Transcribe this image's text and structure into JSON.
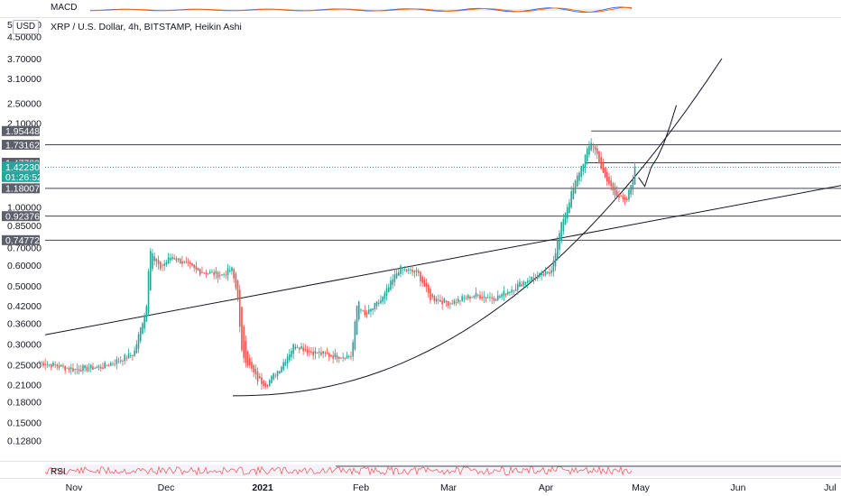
{
  "currency": "USD",
  "title": "XRP / U.S. Dollar, 4h, BITSTAMP, Heikin Ashi",
  "panes": {
    "macd_label": "MACD",
    "rsi_label": "RSI"
  },
  "colors": {
    "up": "#26a69a",
    "down": "#ef5350",
    "trend": "#131722",
    "hline": "#434651",
    "badge": "#5d606b",
    "current_price": "#26a69a",
    "last_red": "#ef5350",
    "macd": "#2962ff",
    "signal": "#ff6d00",
    "rsi": "#ef5350",
    "rsi_band": "#7e57c2"
  },
  "chart_data": {
    "type": "candlestick",
    "symbol": "XRP / U.S. Dollar",
    "interval": "4h",
    "exchange": "BITSTAMP",
    "style": "Heikin Ashi",
    "y_scale": "log",
    "ylim": [
      0.108,
      5.0
    ],
    "y_ticks": [
      "5.00000",
      "4.50000",
      "3.70000",
      "3.10000",
      "2.50000",
      "2.10000",
      "1.00000",
      "0.85000",
      "0.70000",
      "0.60000",
      "0.50000",
      "0.42000",
      "0.36000",
      "0.30000",
      "0.25000",
      "0.21000",
      "0.18000",
      "0.15000",
      "0.12800"
    ],
    "x_ticks": [
      "Nov",
      "Dec",
      "2021",
      "Feb",
      "Mar",
      "Apr",
      "May",
      "Jun",
      "Jul"
    ],
    "price_badges": [
      {
        "text": "1.95448",
        "value": 1.95448,
        "kind": "level"
      },
      {
        "text": "1.73162",
        "value": 1.73162,
        "kind": "level"
      },
      {
        "text": "1.47789",
        "value": 1.47789,
        "kind": "level"
      },
      {
        "text": "1.42979",
        "value": 1.42979,
        "kind": "high"
      },
      {
        "text": "1.42230",
        "value": 1.4223,
        "kind": "current"
      },
      {
        "text": "01:26:52",
        "value": null,
        "kind": "countdown"
      },
      {
        "text": "1.18007",
        "value": 1.18007,
        "kind": "level"
      },
      {
        "text": "0.92376",
        "value": 0.92376,
        "kind": "level"
      },
      {
        "text": "0.74772",
        "value": 0.74772,
        "kind": "level"
      }
    ],
    "horizontal_lines": [
      {
        "value": 1.95448,
        "from_date": "Apr 14"
      },
      {
        "value": 1.73162,
        "from_date": "Oct 21"
      },
      {
        "value": 1.47789,
        "from_date": "Apr 12"
      },
      {
        "value": 1.18007,
        "from_date": "Oct 21"
      },
      {
        "value": 0.92376,
        "from_date": "Oct 21"
      },
      {
        "value": 0.74772,
        "from_date": "Oct 21"
      }
    ],
    "trend_lines": [
      {
        "points": [
          [
            0,
            0.325
          ],
          [
            880,
            1.21
          ]
        ],
        "unit": "days-after-Oct-21 / price",
        "note": "straight"
      }
    ],
    "series_keypoints": [
      {
        "x": "Oct 21",
        "y": 0.255
      },
      {
        "x": "Nov 1",
        "y": 0.24
      },
      {
        "x": "Nov 10",
        "y": 0.245
      },
      {
        "x": "Nov 20",
        "y": 0.275
      },
      {
        "x": "Nov 24",
        "y": 0.42
      },
      {
        "x": "Nov 25",
        "y": 0.71
      },
      {
        "x": "Nov 28",
        "y": 0.58
      },
      {
        "x": "Dec 2",
        "y": 0.65
      },
      {
        "x": "Dec 10",
        "y": 0.57
      },
      {
        "x": "Dec 18",
        "y": 0.55
      },
      {
        "x": "Dec 21",
        "y": 0.58
      },
      {
        "x": "Dec 23",
        "y": 0.45
      },
      {
        "x": "Dec 24",
        "y": 0.28
      },
      {
        "x": "Dec 29",
        "y": 0.22
      },
      {
        "x": "Jan 1",
        "y": 0.21
      },
      {
        "x": "Jan 5",
        "y": 0.24
      },
      {
        "x": "Jan 10",
        "y": 0.3
      },
      {
        "x": "Jan 15",
        "y": 0.28
      },
      {
        "x": "Jan 22",
        "y": 0.27
      },
      {
        "x": "Jan 28",
        "y": 0.27
      },
      {
        "x": "Jan 30",
        "y": 0.45
      },
      {
        "x": "Feb 1",
        "y": 0.38
      },
      {
        "x": "Feb 7",
        "y": 0.45
      },
      {
        "x": "Feb 12",
        "y": 0.58
      },
      {
        "x": "Feb 18",
        "y": 0.56
      },
      {
        "x": "Feb 22",
        "y": 0.45
      },
      {
        "x": "Feb 28",
        "y": 0.43
      },
      {
        "x": "Mar 8",
        "y": 0.46
      },
      {
        "x": "Mar 15",
        "y": 0.45
      },
      {
        "x": "Mar 25",
        "y": 0.53
      },
      {
        "x": "Apr 1",
        "y": 0.56
      },
      {
        "x": "Apr 5",
        "y": 0.9
      },
      {
        "x": "Apr 10",
        "y": 1.35
      },
      {
        "x": "Apr 14",
        "y": 1.78
      },
      {
        "x": "Apr 16",
        "y": 1.58
      },
      {
        "x": "Apr 18",
        "y": 1.3
      },
      {
        "x": "Apr 22",
        "y": 1.12
      },
      {
        "x": "Apr 25",
        "y": 1.03
      },
      {
        "x": "Apr 28",
        "y": 1.42
      }
    ],
    "projection_keypoints": [
      {
        "x": "Apr 29",
        "y": 1.3
      },
      {
        "x": "May 1",
        "y": 1.2
      },
      {
        "x": "May 3",
        "y": 1.42
      },
      {
        "x": "May 5",
        "y": 1.55
      },
      {
        "x": "May 7",
        "y": 1.75
      },
      {
        "x": "May 9",
        "y": 2.05
      },
      {
        "x": "May 11",
        "y": 2.45
      }
    ]
  }
}
